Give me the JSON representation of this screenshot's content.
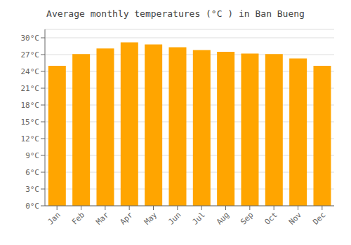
{
  "chart_data": {
    "type": "bar",
    "title": "Average monthly temperatures (°C ) in Ban Bueng",
    "categories": [
      "Jan",
      "Feb",
      "Mar",
      "Apr",
      "May",
      "Jun",
      "Jul",
      "Aug",
      "Sep",
      "Oct",
      "Nov",
      "Dec"
    ],
    "values": [
      25.0,
      27.1,
      28.1,
      29.2,
      28.8,
      28.3,
      27.8,
      27.5,
      27.2,
      27.1,
      26.3,
      25.0
    ],
    "color": "#FFA500",
    "ylim": [
      0,
      31.5
    ],
    "yticks": [
      {
        "value": 0,
        "label": "0°C"
      },
      {
        "value": 3,
        "label": "3°C"
      },
      {
        "value": 6,
        "label": "6°C"
      },
      {
        "value": 9,
        "label": "9°C"
      },
      {
        "value": 12,
        "label": "12°C"
      },
      {
        "value": 15,
        "label": "15°C"
      },
      {
        "value": 18,
        "label": "18°C"
      },
      {
        "value": 21,
        "label": "21°C"
      },
      {
        "value": 24,
        "label": "24°C"
      },
      {
        "value": 27,
        "label": "27°C"
      },
      {
        "value": 30,
        "label": "30°C"
      }
    ],
    "grid": true
  }
}
